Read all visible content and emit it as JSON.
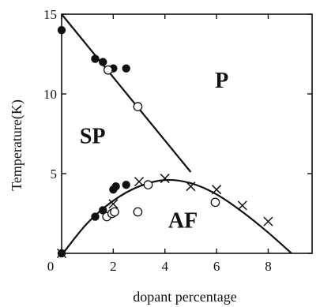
{
  "chart_data": {
    "type": "scatter",
    "title": "",
    "xlabel": "dopant percentage",
    "ylabel": "Temperature(K)",
    "xlim": [
      0,
      9.7
    ],
    "ylim": [
      0,
      15
    ],
    "x_ticks": [
      0,
      2,
      4,
      6,
      8
    ],
    "x_tick_labels": [
      "0",
      "2",
      "4",
      "6",
      "8"
    ],
    "y_ticks": [
      0,
      5,
      10,
      15
    ],
    "y_tick_labels": [
      "0",
      "5",
      "10",
      "15"
    ],
    "grid": false,
    "legend": "none",
    "colors": {
      "ink": "#111111",
      "background": "#ffffff"
    },
    "region_labels": [
      {
        "text": "P",
        "x": 6.2,
        "y": 10.4
      },
      {
        "text": "SP",
        "x": 1.2,
        "y": 6.9
      },
      {
        "text": "AF",
        "x": 4.7,
        "y": 1.6
      }
    ],
    "series": [
      {
        "marker": "filled-circle",
        "points": [
          [
            0,
            14.0
          ],
          [
            1.3,
            12.2
          ],
          [
            1.6,
            12.0
          ],
          [
            2.0,
            11.6
          ],
          [
            2.5,
            11.6
          ],
          [
            0,
            0
          ],
          [
            1.3,
            2.3
          ],
          [
            1.6,
            2.7
          ],
          [
            2.0,
            4.0
          ],
          [
            2.1,
            4.2
          ],
          [
            2.5,
            4.3
          ]
        ]
      },
      {
        "marker": "open-circle",
        "points": [
          [
            1.8,
            11.5
          ],
          [
            2.95,
            9.2
          ],
          [
            1.75,
            2.3
          ],
          [
            1.95,
            2.5
          ],
          [
            2.05,
            2.6
          ],
          [
            2.95,
            2.6
          ],
          [
            3.35,
            4.3
          ],
          [
            5.95,
            3.2
          ]
        ]
      },
      {
        "marker": "cross",
        "points": [
          [
            0,
            0
          ],
          [
            2.0,
            3.1
          ],
          [
            3.0,
            4.5
          ],
          [
            4.0,
            4.7
          ],
          [
            5.0,
            4.2
          ],
          [
            6.0,
            4.0
          ],
          [
            7.0,
            3.0
          ],
          [
            8.0,
            2.0
          ]
        ]
      }
    ],
    "lines": [
      {
        "kind": "straight",
        "points": [
          [
            0,
            15
          ],
          [
            5,
            5.1
          ]
        ]
      },
      {
        "kind": "curve",
        "points": [
          [
            0.1,
            0.1
          ],
          [
            1.0,
            1.9
          ],
          [
            2.0,
            3.3
          ],
          [
            3.0,
            4.2
          ],
          [
            4.0,
            4.6
          ],
          [
            5.0,
            4.4
          ],
          [
            6.0,
            3.7
          ],
          [
            7.0,
            2.6
          ],
          [
            8.0,
            1.3
          ],
          [
            8.9,
            0.0
          ]
        ]
      }
    ]
  }
}
